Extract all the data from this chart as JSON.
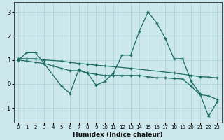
{
  "xlabel": "Humidex (Indice chaleur)",
  "background_color": "#cce8ec",
  "grid_color": "#b0d4d8",
  "line_color": "#1a6b60",
  "xlim": [
    -0.5,
    23.5
  ],
  "ylim": [
    -1.6,
    3.4
  ],
  "yticks": [
    -1,
    0,
    1,
    2,
    3
  ],
  "xticks": [
    0,
    1,
    2,
    3,
    4,
    5,
    6,
    7,
    8,
    9,
    10,
    11,
    12,
    13,
    14,
    15,
    16,
    17,
    18,
    19,
    20,
    21,
    22,
    23
  ],
  "line1_x": [
    0,
    1,
    2,
    3,
    5,
    6,
    7,
    8,
    9,
    10,
    11,
    12,
    13,
    14,
    15,
    16,
    17,
    18,
    19,
    20,
    21,
    22,
    23
  ],
  "line1_y": [
    1.0,
    1.3,
    1.3,
    0.85,
    -0.1,
    -0.4,
    0.6,
    0.45,
    -0.05,
    0.1,
    0.45,
    1.2,
    1.2,
    2.2,
    3.0,
    2.55,
    1.9,
    1.05,
    1.05,
    0.1,
    -0.4,
    -1.35,
    -0.75
  ],
  "line2_x": [
    0,
    1,
    2,
    3,
    5,
    6,
    7,
    8,
    9,
    10,
    13,
    18,
    20,
    21,
    22,
    23
  ],
  "line2_y": [
    1.05,
    1.05,
    1.05,
    1.0,
    0.95,
    0.9,
    0.85,
    0.82,
    0.78,
    0.75,
    0.65,
    0.45,
    0.35,
    0.3,
    0.28,
    0.25
  ],
  "line3_x": [
    0,
    1,
    2,
    3,
    4,
    5,
    6,
    7,
    8,
    9,
    10,
    11,
    12,
    13,
    14,
    15,
    16,
    17,
    18,
    19,
    20,
    21,
    22,
    23
  ],
  "line3_y": [
    1.0,
    0.95,
    0.9,
    0.85,
    0.75,
    0.65,
    0.55,
    0.55,
    0.45,
    0.4,
    0.35,
    0.35,
    0.35,
    0.35,
    0.35,
    0.3,
    0.25,
    0.25,
    0.22,
    0.2,
    -0.1,
    -0.45,
    -0.5,
    -0.65
  ]
}
